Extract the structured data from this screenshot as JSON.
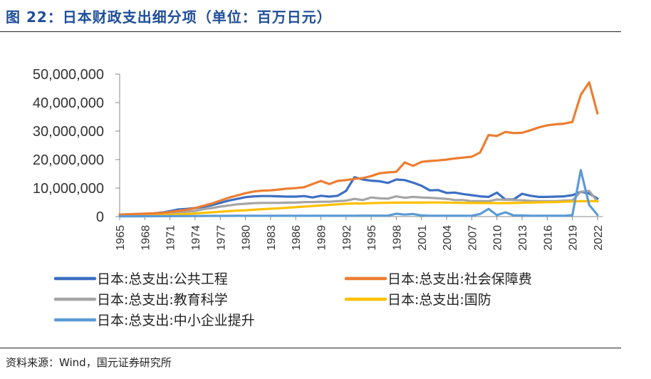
{
  "header": {
    "title": "图 22：日本财政支出细分项（单位：百万日元）"
  },
  "footer": {
    "source": "资料来源：Wind，国元证券研究所"
  },
  "chart_data": {
    "type": "line",
    "title": "",
    "xlabel": "",
    "ylabel": "",
    "ylim": [
      0,
      50000000
    ],
    "yticks": [
      0,
      10000000,
      20000000,
      30000000,
      40000000,
      50000000
    ],
    "ytick_labels": [
      "0",
      "10,000,000",
      "20,000,000",
      "30,000,000",
      "40,000,000",
      "50,000,000"
    ],
    "xticks": [
      1965,
      1968,
      1971,
      1974,
      1977,
      1980,
      1983,
      1986,
      1989,
      1992,
      1995,
      1998,
      2001,
      2004,
      2007,
      2010,
      2013,
      2016,
      2019,
      2022
    ],
    "grid": false,
    "legend_position": "bottom",
    "x": [
      1965,
      1966,
      1967,
      1968,
      1969,
      1970,
      1971,
      1972,
      1973,
      1974,
      1975,
      1976,
      1977,
      1978,
      1979,
      1980,
      1981,
      1982,
      1983,
      1984,
      1985,
      1986,
      1987,
      1988,
      1989,
      1990,
      1991,
      1992,
      1993,
      1994,
      1995,
      1996,
      1997,
      1998,
      1999,
      2000,
      2001,
      2002,
      2003,
      2004,
      2005,
      2006,
      2007,
      2008,
      2009,
      2010,
      2011,
      2012,
      2013,
      2014,
      2015,
      2016,
      2017,
      2018,
      2019,
      2020,
      2021,
      2022
    ],
    "series": [
      {
        "name": "日本:总支出:公共工程",
        "color": "#3d6fc4",
        "values": [
          700000,
          800000,
          900000,
          1000000,
          1100000,
          1400000,
          1900000,
          2500000,
          2700000,
          3000000,
          3400000,
          4000000,
          4800000,
          5600000,
          6200000,
          6800000,
          7100000,
          7200000,
          7200000,
          7100000,
          7000000,
          7000000,
          7200000,
          6700000,
          7300000,
          7000000,
          7300000,
          9000000,
          13800000,
          13000000,
          12600000,
          12400000,
          11800000,
          13000000,
          12800000,
          11900000,
          10800000,
          9200000,
          9300000,
          8300000,
          8400000,
          7900000,
          7500000,
          7100000,
          6900000,
          8400000,
          6000000,
          6000000,
          8000000,
          7300000,
          6900000,
          6900000,
          7000000,
          7100000,
          7500000,
          8700000,
          8100000,
          6300000
        ]
      },
      {
        "name": "日本:总支出:社会保障费",
        "color": "#ed7d31",
        "values": [
          700000,
          800000,
          900000,
          1000000,
          1100000,
          1300000,
          1600000,
          2000000,
          2400000,
          3000000,
          3800000,
          4600000,
          5600000,
          6600000,
          7400000,
          8200000,
          8800000,
          9100000,
          9200000,
          9500000,
          9800000,
          10000000,
          10300000,
          11400000,
          12500000,
          11400000,
          12500000,
          12800000,
          13200000,
          13500000,
          14200000,
          15200000,
          15500000,
          15700000,
          19000000,
          17800000,
          19200000,
          19500000,
          19700000,
          20000000,
          20400000,
          20700000,
          21000000,
          22500000,
          28600000,
          28300000,
          29700000,
          29300000,
          29400000,
          30300000,
          31300000,
          32000000,
          32400000,
          32600000,
          33200000,
          42700000,
          47100000,
          36200000
        ]
      },
      {
        "name": "日本:总支出:教育科学",
        "color": "#a5a5a5",
        "values": [
          500000,
          600000,
          700000,
          800000,
          900000,
          1000000,
          1200000,
          1400000,
          1700000,
          2000000,
          2600000,
          3000000,
          3500000,
          3900000,
          4300000,
          4500000,
          4700000,
          4800000,
          4800000,
          4800000,
          4900000,
          4900000,
          5100000,
          5100000,
          5200000,
          5200000,
          5400000,
          5600000,
          6200000,
          5800000,
          6700000,
          6400000,
          6300000,
          7100000,
          6600000,
          6900000,
          6700000,
          6600000,
          6400000,
          6200000,
          5800000,
          5800000,
          5400000,
          5400000,
          5400000,
          6000000,
          5900000,
          5800000,
          5700000,
          5500000,
          5400000,
          5400000,
          5400000,
          5600000,
          5700000,
          8700000,
          9000000,
          5300000
        ]
      },
      {
        "name": "日本:总支出:国防",
        "color": "#ffc000",
        "values": [
          300000,
          330000,
          370000,
          420000,
          480000,
          560000,
          650000,
          800000,
          900000,
          1100000,
          1300000,
          1500000,
          1700000,
          1900000,
          2100000,
          2200000,
          2400000,
          2600000,
          2750000,
          2900000,
          3100000,
          3300000,
          3500000,
          3700000,
          3900000,
          4100000,
          4300000,
          4500000,
          4600000,
          4600000,
          4700000,
          4800000,
          4850000,
          4900000,
          4900000,
          4900000,
          4900000,
          4950000,
          4950000,
          4900000,
          4850000,
          4800000,
          4780000,
          4750000,
          4750000,
          4700000,
          4750000,
          4750000,
          4850000,
          4900000,
          5000000,
          5050000,
          5100000,
          5200000,
          5300000,
          5400000,
          5400000,
          5400000
        ]
      },
      {
        "name": "日本:总支出:中小企业提升",
        "color": "#5b9bd5",
        "values": [
          100000,
          100000,
          110000,
          120000,
          130000,
          140000,
          150000,
          170000,
          180000,
          200000,
          220000,
          240000,
          250000,
          260000,
          270000,
          280000,
          280000,
          280000,
          280000,
          280000,
          280000,
          280000,
          280000,
          280000,
          280000,
          280000,
          290000,
          300000,
          300000,
          320000,
          320000,
          320000,
          320000,
          1000000,
          700000,
          900000,
          400000,
          300000,
          300000,
          300000,
          300000,
          300000,
          300000,
          900000,
          2700000,
          500000,
          1500000,
          400000,
          400000,
          300000,
          300000,
          300000,
          300000,
          300000,
          500000,
          16300000,
          4100000,
          600000
        ]
      }
    ]
  }
}
